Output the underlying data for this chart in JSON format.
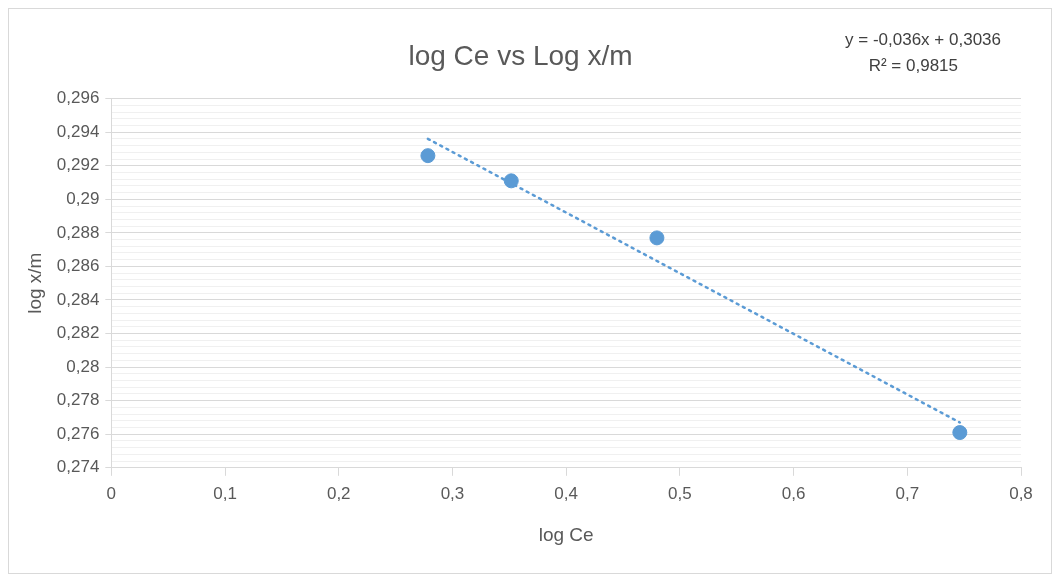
{
  "chart_data": {
    "type": "scatter",
    "title": "log Ce vs Log x/m",
    "xlabel": "log Ce",
    "ylabel": "log x/m",
    "annotations": [
      "y = -0,036x + 0,3036",
      "R² = 0,9815"
    ],
    "series": [
      {
        "color": "#5b9bd5",
        "x": [
          0.2784,
          0.3517,
          0.4798,
          0.7462
        ],
        "values": [
          0.2926,
          0.2911,
          0.2877,
          0.2761
        ],
        "marker": "circle"
      },
      {
        "type": "line",
        "color": "#5b9bd5",
        "x": [
          0.2784,
          0.7462
        ],
        "values": [
          0.2936,
          0.2767
        ],
        "line_style": "dotted",
        "marker": "none"
      }
    ],
    "xlim": [
      0,
      0.8
    ],
    "xticks": [
      0,
      {
        "value": 0.1,
        "label": "0,1"
      },
      {
        "value": 0.2,
        "label": "0,2"
      },
      {
        "value": 0.3,
        "label": "0,3"
      },
      {
        "value": 0.4,
        "label": "0,4"
      },
      {
        "value": 0.5,
        "label": "0,5"
      },
      {
        "value": 0.6,
        "label": "0,6"
      },
      {
        "value": 0.7,
        "label": "0,7"
      },
      {
        "value": 0.8,
        "label": "0,8"
      }
    ],
    "ylim": [
      0.274,
      0.296
    ],
    "yticks": [
      {
        "value": 0.274,
        "label": "0,274"
      },
      {
        "value": 0.2744,
        "label": null
      },
      {
        "value": 0.2748,
        "label": null
      },
      {
        "value": 0.2752,
        "label": null
      },
      {
        "value": 0.2756,
        "label": null
      },
      {
        "value": 0.276,
        "label": "0,276"
      },
      {
        "value": 0.2764,
        "label": null
      },
      {
        "value": 0.2768,
        "label": null
      },
      {
        "value": 0.2772,
        "label": null
      },
      {
        "value": 0.2776,
        "label": null
      },
      {
        "value": 0.278,
        "label": "0,278"
      },
      {
        "value": 0.2784,
        "label": null
      },
      {
        "value": 0.2788,
        "label": null
      },
      {
        "value": 0.2792,
        "label": null
      },
      {
        "value": 0.2796,
        "label": null
      },
      {
        "value": 0.28,
        "label": "0,28"
      },
      {
        "value": 0.2804,
        "label": null
      },
      {
        "value": 0.2808,
        "label": null
      },
      {
        "value": 0.2812,
        "label": null
      },
      {
        "value": 0.2816,
        "label": null
      },
      {
        "value": 0.282,
        "label": "0,282"
      },
      {
        "value": 0.2824,
        "label": null
      },
      {
        "value": 0.2828,
        "label": null
      },
      {
        "value": 0.2832,
        "label": null
      },
      {
        "value": 0.2836,
        "label": null
      },
      {
        "value": 0.284,
        "label": "0,284"
      },
      {
        "value": 0.2844,
        "label": null
      },
      {
        "value": 0.2848,
        "label": null
      },
      {
        "value": 0.2852,
        "label": null
      },
      {
        "value": 0.2856,
        "label": null
      },
      {
        "value": 0.286,
        "label": "0,286"
      },
      {
        "value": 0.2864,
        "label": null
      },
      {
        "value": 0.2868,
        "label": null
      },
      {
        "value": 0.2872,
        "label": null
      },
      {
        "value": 0.2876,
        "label": null
      },
      {
        "value": 0.288,
        "label": "0,288"
      },
      {
        "value": 0.2884,
        "label": null
      },
      {
        "value": 0.2888,
        "label": null
      },
      {
        "value": 0.2892,
        "label": null
      },
      {
        "value": 0.2896,
        "label": null
      },
      {
        "value": 0.29,
        "label": "0,29"
      },
      {
        "value": 0.2904,
        "label": null
      },
      {
        "value": 0.2908,
        "label": null
      },
      {
        "value": 0.2912,
        "label": null
      },
      {
        "value": 0.2916,
        "label": null
      },
      {
        "value": 0.292,
        "label": "0,292"
      },
      {
        "value": 0.2924,
        "label": null
      },
      {
        "value": 0.2928,
        "label": null
      },
      {
        "value": 0.2932,
        "label": null
      },
      {
        "value": 0.2936,
        "label": null
      },
      {
        "value": 0.294,
        "label": "0,294"
      },
      {
        "value": 0.2944,
        "label": null
      },
      {
        "value": 0.2948,
        "label": null
      },
      {
        "value": 0.2952,
        "label": null
      },
      {
        "value": 0.2956,
        "label": null
      },
      {
        "value": 0.296,
        "label": "0,296"
      }
    ],
    "grid": "y",
    "legend": false
  }
}
